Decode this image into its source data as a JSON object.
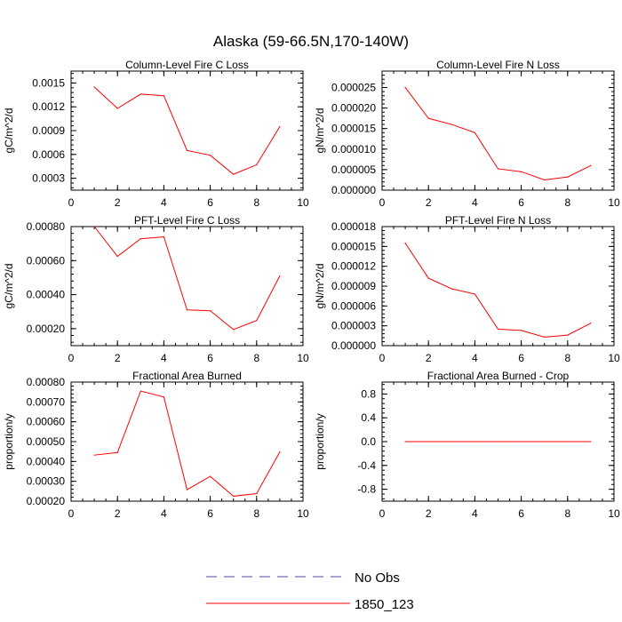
{
  "figure": {
    "title": "Alaska (59-66.5N,170-140W)",
    "legend": [
      {
        "label": "No Obs",
        "color": "#4a4aa8",
        "dashed": true
      },
      {
        "label": "1850_123",
        "color": "#ff0000",
        "dashed": false
      }
    ]
  },
  "chart_data": [
    {
      "type": "line",
      "title": "Column-Level Fire C Loss",
      "ylabel": "gC/m^2/d",
      "xlim": [
        0,
        10
      ],
      "ylim": [
        0.00015,
        0.00165
      ],
      "xticks": [
        0,
        2,
        4,
        6,
        8,
        10
      ],
      "xtick_labels": [
        "0",
        "2",
        "4",
        "6",
        "8",
        "10"
      ],
      "yticks": [
        0.0003,
        0.0006,
        0.0009,
        0.0012,
        0.0015
      ],
      "ytick_labels": [
        "0.0003",
        "0.0006",
        "0.0009",
        "0.0012",
        "0.0015"
      ],
      "grid": false,
      "series": [
        {
          "name": "1850_123",
          "x": [
            1,
            2,
            3,
            4,
            5,
            6,
            7,
            8,
            9
          ],
          "values": [
            0.00145,
            0.00118,
            0.00136,
            0.00134,
            0.00065,
            0.00059,
            0.00035,
            0.00047,
            0.00095
          ]
        }
      ]
    },
    {
      "type": "line",
      "title": "Column-Level Fire N Loss",
      "ylabel": "gN/m^2/d",
      "xlim": [
        0,
        10
      ],
      "ylim": [
        0,
        2.9e-05
      ],
      "xticks": [
        0,
        2,
        4,
        6,
        8,
        10
      ],
      "xtick_labels": [
        "0",
        "2",
        "4",
        "6",
        "8",
        "10"
      ],
      "yticks": [
        0,
        5e-06,
        1e-05,
        1.5e-05,
        2e-05,
        2.5e-05
      ],
      "ytick_labels": [
        "0.000000",
        "0.000005",
        "0.000010",
        "0.000015",
        "0.000020",
        "0.000025"
      ],
      "grid": false,
      "series": [
        {
          "name": "1850_123",
          "x": [
            1,
            2,
            3,
            4,
            5,
            6,
            7,
            8,
            9
          ],
          "values": [
            2.5e-05,
            1.75e-05,
            1.6e-05,
            1.4e-05,
            5.2e-06,
            4.5e-06,
            2.5e-06,
            3.2e-06,
            6e-06
          ]
        }
      ]
    },
    {
      "type": "line",
      "title": "PFT-Level Fire C Loss",
      "ylabel": "gC/m^2/d",
      "xlim": [
        0,
        10
      ],
      "ylim": [
        0.0001,
        0.0008
      ],
      "xticks": [
        0,
        2,
        4,
        6,
        8,
        10
      ],
      "xtick_labels": [
        "0",
        "2",
        "4",
        "6",
        "8",
        "10"
      ],
      "yticks": [
        0.0002,
        0.0004,
        0.0006,
        0.0008
      ],
      "ytick_labels": [
        "0.00020",
        "0.00040",
        "0.00060",
        "0.00080"
      ],
      "grid": false,
      "series": [
        {
          "name": "1850_123",
          "x": [
            1,
            2,
            3,
            4,
            5,
            6,
            7,
            8,
            9
          ],
          "values": [
            0.0008,
            0.000625,
            0.000728,
            0.00074,
            0.00031,
            0.000305,
            0.000195,
            0.000248,
            0.00051
          ]
        }
      ]
    },
    {
      "type": "line",
      "title": "PFT-Level Fire N Loss",
      "ylabel": "gN/m^2/d",
      "xlim": [
        0,
        10
      ],
      "ylim": [
        0,
        1.8e-05
      ],
      "xticks": [
        0,
        2,
        4,
        6,
        8,
        10
      ],
      "xtick_labels": [
        "0",
        "2",
        "4",
        "6",
        "8",
        "10"
      ],
      "yticks": [
        0,
        3e-06,
        6e-06,
        9e-06,
        1.2e-05,
        1.5e-05,
        1.8e-05
      ],
      "ytick_labels": [
        "0.000000",
        "0.000003",
        "0.000006",
        "0.000009",
        "0.000012",
        "0.000015",
        "0.000018"
      ],
      "grid": false,
      "series": [
        {
          "name": "1850_123",
          "x": [
            1,
            2,
            3,
            4,
            5,
            6,
            7,
            8,
            9
          ],
          "values": [
            1.55e-05,
            1.02e-05,
            8.6e-06,
            7.8e-06,
            2.5e-06,
            2.3e-06,
            1.3e-06,
            1.6e-06,
            3.4e-06
          ]
        }
      ]
    },
    {
      "type": "line",
      "title": "Fractional Area Burned",
      "ylabel": "proportion/y",
      "xlim": [
        0,
        10
      ],
      "ylim": [
        0.0002,
        0.0008
      ],
      "xticks": [
        0,
        2,
        4,
        6,
        8,
        10
      ],
      "xtick_labels": [
        "0",
        "2",
        "4",
        "6",
        "8",
        "10"
      ],
      "yticks": [
        0.0002,
        0.0003,
        0.0004,
        0.0005,
        0.0006,
        0.0007,
        0.0008
      ],
      "ytick_labels": [
        "0.00020",
        "0.00030",
        "0.00040",
        "0.00050",
        "0.00060",
        "0.00070",
        "0.00080"
      ],
      "grid": false,
      "series": [
        {
          "name": "1850_123",
          "x": [
            1,
            2,
            3,
            4,
            5,
            6,
            7,
            8,
            9
          ],
          "values": [
            0.000432,
            0.000445,
            0.000755,
            0.000725,
            0.000258,
            0.000325,
            0.000225,
            0.000238,
            0.000448
          ]
        }
      ]
    },
    {
      "type": "line",
      "title": "Fractional Area Burned - Crop",
      "ylabel": "proportion/y",
      "xlim": [
        0,
        10
      ],
      "ylim": [
        -1.0,
        1.0
      ],
      "xticks": [
        0,
        2,
        4,
        6,
        8,
        10
      ],
      "xtick_labels": [
        "0",
        "2",
        "4",
        "6",
        "8",
        "10"
      ],
      "yticks": [
        -0.8,
        -0.4,
        0.0,
        0.4,
        0.8
      ],
      "ytick_labels": [
        "-0.8",
        "-0.4",
        "0.0",
        "0.4",
        "0.8"
      ],
      "grid": false,
      "series": [
        {
          "name": "1850_123",
          "x": [
            1,
            2,
            3,
            4,
            5,
            6,
            7,
            8,
            9
          ],
          "values": [
            0,
            0,
            0,
            0,
            0,
            0,
            0,
            0,
            0
          ]
        }
      ]
    }
  ]
}
